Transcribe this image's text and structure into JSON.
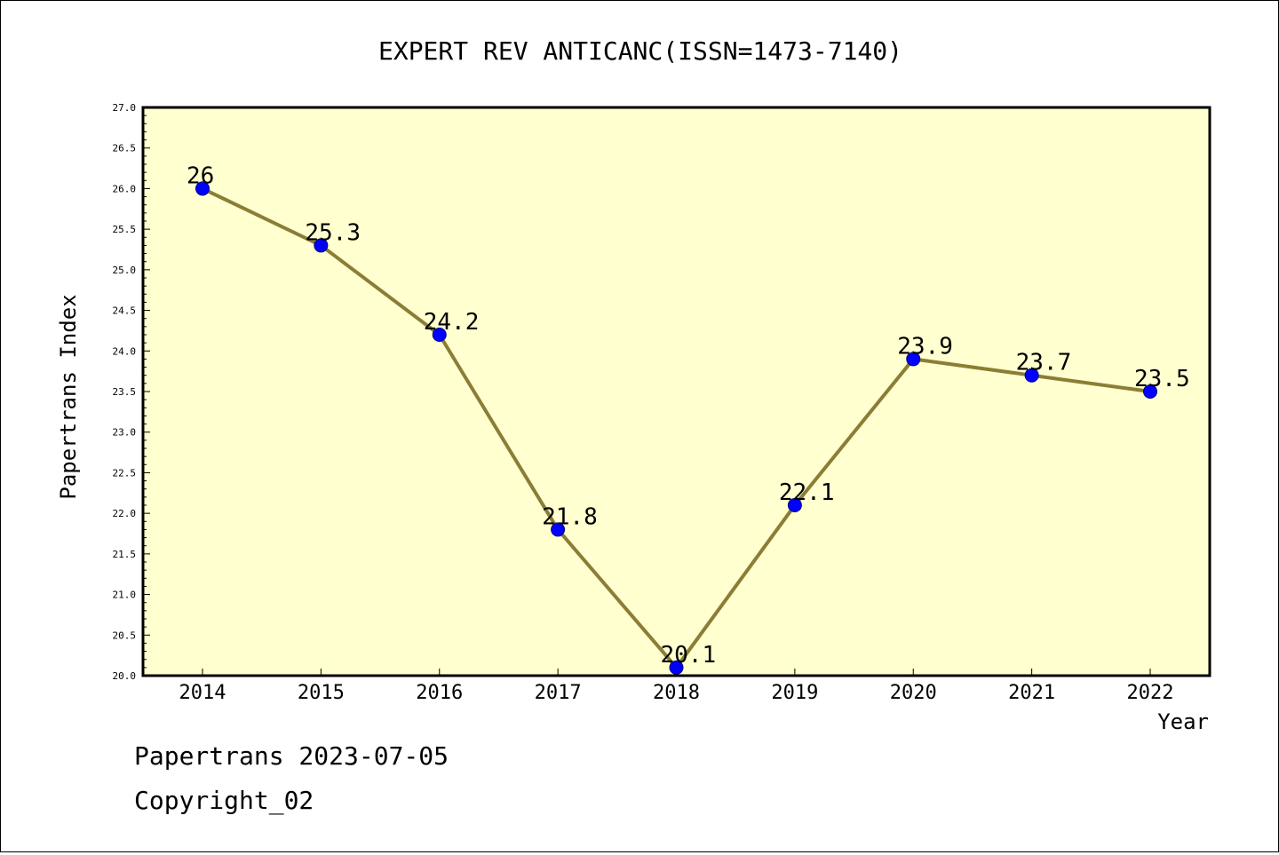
{
  "chart_data": {
    "type": "line",
    "title": "EXPERT REV ANTICANC(ISSN=1473-7140)",
    "xlabel": "Year",
    "ylabel": "Papertrans Index",
    "categories": [
      "2014",
      "2015",
      "2016",
      "2017",
      "2018",
      "2019",
      "2020",
      "2021",
      "2022"
    ],
    "values": [
      26,
      25.3,
      24.2,
      21.8,
      20.1,
      22.1,
      23.9,
      23.7,
      23.5
    ],
    "data_labels": [
      "26",
      "25.3",
      "24.2",
      "21.8",
      "20.1",
      "22.1",
      "23.9",
      "23.7",
      "23.5"
    ],
    "ylim": [
      20.0,
      27.0
    ],
    "yticks": [
      "20.0",
      "20.5",
      "21.0",
      "21.5",
      "22.0",
      "22.5",
      "23.0",
      "23.5",
      "24.0",
      "24.5",
      "25.0",
      "25.5",
      "26.0",
      "26.5",
      "27.0"
    ],
    "grid": false,
    "legend": "none",
    "colors": {
      "plot_background": "#ffffd0",
      "line": "#8b7d35",
      "marker": "#0000ff",
      "marker_edge": "#000080"
    }
  },
  "footer": {
    "line1": "Papertrans 2023-07-05",
    "line2": "Copyright_02"
  }
}
